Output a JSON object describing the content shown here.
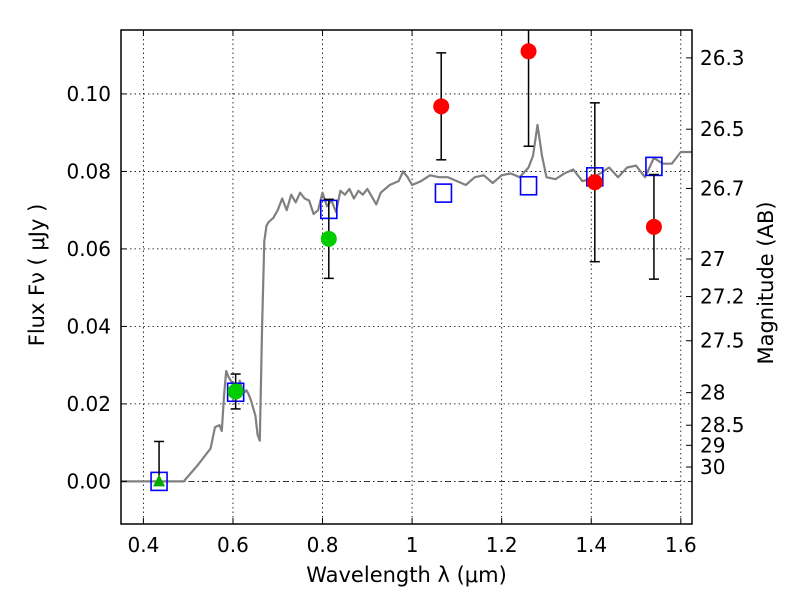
{
  "chart_data": {
    "type": "scatter",
    "xlabel": "Wavelength  λ (μm)",
    "ylabel": "Flux  Fν  ( μJy )",
    "ylabel_right": "Magnitude (AB)",
    "xlim": [
      0.35,
      1.625
    ],
    "ylim": [
      -0.011,
      0.1165
    ],
    "grid": true,
    "x_ticks": [
      0.4,
      0.6,
      0.8,
      1.0,
      1.2,
      1.4,
      1.6
    ],
    "x_tick_labels": [
      "0.4",
      "0.6",
      "0.8",
      "1",
      "1.2",
      "1.4",
      "1.6"
    ],
    "y_ticks": [
      0.0,
      0.02,
      0.04,
      0.06,
      0.08,
      0.1
    ],
    "y_tick_labels": [
      "0.00",
      "0.02",
      "0.04",
      "0.06",
      "0.08",
      "0.10"
    ],
    "right_ticks": [
      {
        "label": "26.3",
        "flux": 0.1093
      },
      {
        "label": "26.5",
        "flux": 0.0909
      },
      {
        "label": "26.7",
        "flux": 0.0756
      },
      {
        "label": "27",
        "flux": 0.0574
      },
      {
        "label": "27.2",
        "flux": 0.0477
      },
      {
        "label": "27.5",
        "flux": 0.0363
      },
      {
        "label": "28",
        "flux": 0.0229
      },
      {
        "label": "28.5",
        "flux": 0.0145
      },
      {
        "label": "29",
        "flux": 0.0093
      },
      {
        "label": "30",
        "flux": 0.0037
      }
    ],
    "series": [
      {
        "kind": "line",
        "color": "#808080",
        "x": [
          0.35,
          0.43,
          0.49,
          0.52,
          0.55,
          0.56,
          0.57,
          0.575,
          0.58,
          0.585,
          0.59,
          0.595,
          0.6,
          0.605,
          0.61,
          0.615,
          0.62,
          0.625,
          0.63,
          0.635,
          0.64,
          0.645,
          0.65,
          0.655,
          0.66,
          0.665,
          0.67,
          0.675,
          0.68,
          0.69,
          0.7,
          0.71,
          0.72,
          0.73,
          0.74,
          0.75,
          0.76,
          0.77,
          0.78,
          0.79,
          0.8,
          0.81,
          0.82,
          0.83,
          0.84,
          0.85,
          0.86,
          0.87,
          0.88,
          0.89,
          0.9,
          0.91,
          0.92,
          0.93,
          0.94,
          0.95,
          0.96,
          0.97,
          0.98,
          0.99,
          1.0,
          1.02,
          1.04,
          1.06,
          1.08,
          1.1,
          1.12,
          1.14,
          1.16,
          1.18,
          1.2,
          1.22,
          1.24,
          1.26,
          1.27,
          1.28,
          1.29,
          1.3,
          1.32,
          1.34,
          1.36,
          1.38,
          1.4,
          1.42,
          1.44,
          1.46,
          1.48,
          1.5,
          1.52,
          1.54,
          1.56,
          1.58,
          1.6,
          1.625
        ],
        "values": [
          0.0,
          0.0,
          0.0,
          0.004,
          0.0085,
          0.014,
          0.0145,
          0.013,
          0.022,
          0.0285,
          0.027,
          0.026,
          0.025,
          0.0225,
          0.0215,
          0.026,
          0.024,
          0.023,
          0.0235,
          0.0225,
          0.021,
          0.019,
          0.017,
          0.012,
          0.0105,
          0.04,
          0.062,
          0.066,
          0.067,
          0.068,
          0.07,
          0.073,
          0.07,
          0.074,
          0.072,
          0.0745,
          0.073,
          0.0725,
          0.069,
          0.07,
          0.0745,
          0.071,
          0.0725,
          0.0695,
          0.075,
          0.074,
          0.0755,
          0.073,
          0.075,
          0.074,
          0.0755,
          0.0735,
          0.0715,
          0.0745,
          0.0755,
          0.0765,
          0.077,
          0.0775,
          0.08,
          0.0785,
          0.0765,
          0.0775,
          0.079,
          0.0785,
          0.0785,
          0.0775,
          0.0765,
          0.0785,
          0.079,
          0.077,
          0.079,
          0.0795,
          0.0785,
          0.081,
          0.084,
          0.092,
          0.084,
          0.0785,
          0.078,
          0.0795,
          0.0805,
          0.0775,
          0.078,
          0.0795,
          0.081,
          0.0785,
          0.081,
          0.0815,
          0.0785,
          0.0835,
          0.082,
          0.082,
          0.085,
          0.085
        ]
      },
      {
        "kind": "points",
        "marker": "square",
        "color": "#0000ff",
        "x": [
          0.435,
          0.606,
          0.814,
          1.07,
          1.26,
          1.408,
          1.54
        ],
        "values": [
          0.0,
          0.023,
          0.0702,
          0.0744,
          0.0763,
          0.0786,
          0.0813
        ]
      },
      {
        "kind": "points",
        "marker": "circle",
        "color": "#ff0000",
        "x": [
          1.065,
          1.26,
          1.408,
          1.54
        ],
        "values": [
          0.0968,
          0.111,
          0.0772,
          0.0657
        ],
        "yerr": [
          0.0138,
          0.0245,
          0.0205,
          0.0135
        ]
      },
      {
        "kind": "points",
        "marker": "circle",
        "color": "#00cc00",
        "x": [
          0.606,
          0.814
        ],
        "values": [
          0.0232,
          0.0626
        ],
        "yerr": [
          0.0045,
          0.0102
        ]
      },
      {
        "kind": "points",
        "marker": "triangle",
        "color": "#00aa00",
        "x": [
          0.435
        ],
        "values": [
          0.0
        ],
        "yerr_upper": [
          0.0103
        ]
      }
    ]
  }
}
